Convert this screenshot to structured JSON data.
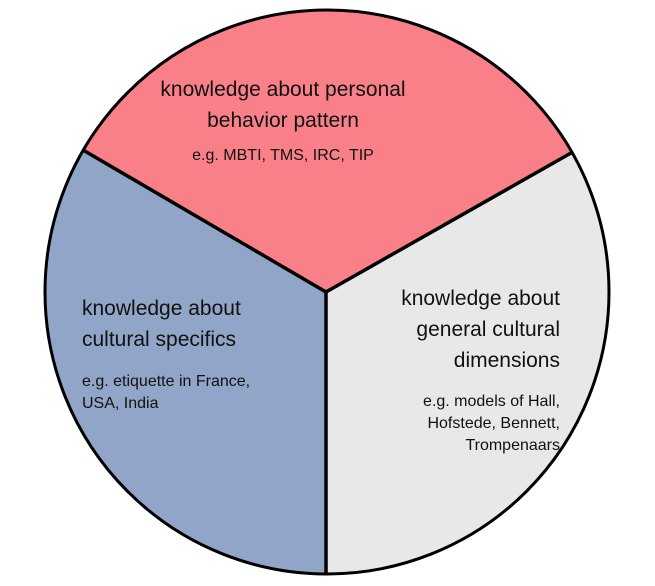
{
  "colors": {
    "top_segment": "#f98088",
    "left_segment": "#91a5c8",
    "right_segment": "#e8e8e8",
    "outline": "#000000"
  },
  "segments": {
    "top": {
      "heading_line1": "knowledge about personal",
      "heading_line2": "behavior pattern",
      "example": "e.g. MBTI, TMS, IRC, TIP"
    },
    "left": {
      "heading_line1": "knowledge about",
      "heading_line2": "cultural specifics",
      "example_line1": "e.g. etiquette in France,",
      "example_line2": "USA, India"
    },
    "right": {
      "heading_line1": "knowledge about",
      "heading_line2": "general cultural",
      "heading_line3": "dimensions",
      "example_line1": "e.g. models of Hall,",
      "example_line2": "Hofstede, Bennett,",
      "example_line3": "Trompenaars"
    }
  }
}
